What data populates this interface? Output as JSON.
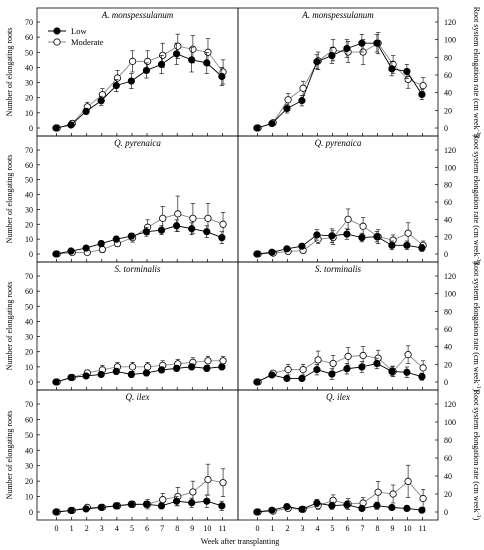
{
  "labels": {
    "xlabel": "Week after transplanting",
    "ylabel_left": "Number of elongating roots",
    "ylabel_right": "Root system elongation rate (cm week",
    "ylabel_right_exp": "-1",
    "ylabel_right_close": ")"
  },
  "legend": {
    "low": "Low",
    "moderate": "Moderate"
  },
  "colors": {
    "low": "#000000",
    "moderate": "#ffffff",
    "stroke": "#000000",
    "line_low": "#000000",
    "line_moderate": "#888888"
  },
  "chart_data": [
    {
      "type": "line",
      "title": "A. monspessulanum",
      "ylabel": "Number of elongating roots",
      "x": [
        0,
        1,
        2,
        3,
        4,
        5,
        6,
        7,
        8,
        9,
        10,
        11
      ],
      "ylim": [
        0,
        70
      ],
      "yticks": [
        0,
        10,
        20,
        30,
        40,
        50,
        60,
        70
      ],
      "series": [
        {
          "name": "Low",
          "values": [
            0,
            2,
            11,
            18,
            28,
            31,
            38,
            42,
            49,
            45,
            43,
            34
          ],
          "err": [
            1,
            1,
            2,
            3,
            4,
            5,
            5,
            6,
            7,
            8,
            7,
            6
          ]
        },
        {
          "name": "Moderate",
          "values": [
            0,
            3,
            14,
            22,
            33,
            44,
            44,
            48,
            54,
            52,
            50,
            37
          ],
          "err": [
            1,
            2,
            3,
            4,
            5,
            7,
            7,
            8,
            8,
            9,
            9,
            8
          ]
        }
      ]
    },
    {
      "type": "line",
      "title": "A. monspessulanum",
      "ylabel": "Root system elongation rate (cm week-1)",
      "x": [
        0,
        1,
        2,
        3,
        4,
        5,
        6,
        7,
        8,
        9,
        10,
        11
      ],
      "ylim": [
        0,
        120
      ],
      "yticks": [
        0,
        20,
        40,
        60,
        80,
        100,
        120
      ],
      "series": [
        {
          "name": "Low",
          "values": [
            0,
            5,
            22,
            31,
            75,
            82,
            90,
            96,
            96,
            67,
            64,
            38
          ],
          "err": [
            1,
            2,
            5,
            6,
            8,
            9,
            10,
            10,
            10,
            8,
            8,
            6
          ]
        },
        {
          "name": "Moderate",
          "values": [
            0,
            6,
            32,
            45,
            76,
            88,
            86,
            86,
            96,
            72,
            55,
            48
          ],
          "err": [
            1,
            2,
            7,
            8,
            10,
            12,
            12,
            14,
            12,
            10,
            10,
            9
          ]
        }
      ]
    },
    {
      "type": "line",
      "title": "Q. pyrenaica",
      "ylabel": "Number of elongating roots",
      "x": [
        0,
        1,
        2,
        3,
        4,
        5,
        6,
        7,
        8,
        9,
        10,
        11
      ],
      "ylim": [
        0,
        70
      ],
      "yticks": [
        0,
        10,
        20,
        30,
        40,
        50,
        60,
        70
      ],
      "series": [
        {
          "name": "Low",
          "values": [
            0,
            2,
            4,
            7,
            10,
            12,
            15,
            16,
            19,
            17,
            15,
            11
          ],
          "err": [
            0.5,
            1,
            1,
            2,
            2,
            2,
            3,
            3,
            4,
            4,
            4,
            4
          ]
        },
        {
          "name": "Moderate",
          "values": [
            0,
            1,
            1,
            3,
            7,
            11,
            18,
            24,
            27,
            24,
            24,
            20
          ],
          "err": [
            0.5,
            1,
            1,
            2,
            2,
            3,
            5,
            8,
            12,
            10,
            10,
            8
          ]
        }
      ]
    },
    {
      "type": "line",
      "title": "Q. pyrenaica",
      "ylabel": "Root system elongation rate (cm week-1)",
      "x": [
        0,
        1,
        2,
        3,
        4,
        5,
        6,
        7,
        8,
        9,
        10,
        11
      ],
      "ylim": [
        0,
        120
      ],
      "yticks": [
        0,
        20,
        40,
        60,
        80,
        100,
        120
      ],
      "series": [
        {
          "name": "Low",
          "values": [
            0,
            2,
            6,
            9,
            22,
            21,
            23,
            19,
            20,
            10,
            10,
            7
          ],
          "err": [
            1,
            1,
            2,
            3,
            6,
            8,
            6,
            5,
            6,
            5,
            5,
            4
          ]
        },
        {
          "name": "Moderate",
          "values": [
            0,
            1,
            3,
            4,
            17,
            19,
            40,
            32,
            20,
            16,
            24,
            10
          ],
          "err": [
            1,
            1,
            2,
            3,
            5,
            8,
            12,
            10,
            8,
            6,
            12,
            5
          ]
        }
      ]
    },
    {
      "type": "line",
      "title": "S. torminalis",
      "ylabel": "Number of elongating roots",
      "x": [
        0,
        1,
        2,
        3,
        4,
        5,
        6,
        7,
        8,
        9,
        10,
        11
      ],
      "ylim": [
        0,
        70
      ],
      "yticks": [
        0,
        10,
        20,
        30,
        40,
        50,
        60,
        70
      ],
      "series": [
        {
          "name": "Low",
          "values": [
            0,
            3,
            4,
            5,
            7,
            5,
            6,
            8,
            9,
            10,
            9,
            10
          ],
          "err": [
            0.5,
            1,
            1,
            1,
            2,
            2,
            2,
            2,
            2,
            2,
            2,
            2
          ]
        },
        {
          "name": "Moderate",
          "values": [
            0,
            3,
            6,
            8,
            10,
            10,
            10,
            11,
            12,
            13,
            14,
            14
          ],
          "err": [
            0.5,
            1,
            2,
            3,
            3,
            3,
            3,
            3,
            3,
            3,
            3,
            3
          ]
        }
      ]
    },
    {
      "type": "line",
      "title": "S. torminalis",
      "ylabel": "Root system elongation rate (cm week-1)",
      "x": [
        0,
        1,
        2,
        3,
        4,
        5,
        6,
        7,
        8,
        9,
        10,
        11
      ],
      "ylim": [
        0,
        120
      ],
      "yticks": [
        0,
        20,
        40,
        60,
        80,
        100,
        120
      ],
      "series": [
        {
          "name": "Low",
          "values": [
            0,
            8,
            4,
            4,
            14,
            9,
            15,
            17,
            21,
            12,
            11,
            6
          ],
          "err": [
            1,
            2,
            3,
            3,
            6,
            6,
            6,
            6,
            6,
            5,
            6,
            4
          ]
        },
        {
          "name": "Moderate",
          "values": [
            0,
            10,
            14,
            14,
            25,
            21,
            29,
            30,
            27,
            12,
            31,
            16
          ],
          "err": [
            1,
            3,
            6,
            6,
            10,
            9,
            10,
            10,
            9,
            6,
            10,
            8
          ]
        }
      ]
    },
    {
      "type": "line",
      "title": "Q. ilex",
      "ylabel": "Number of elongating roots",
      "x": [
        0,
        1,
        2,
        3,
        4,
        5,
        6,
        7,
        8,
        9,
        10,
        11
      ],
      "ylim": [
        0,
        70
      ],
      "yticks": [
        0,
        10,
        20,
        30,
        40,
        50,
        60,
        70
      ],
      "series": [
        {
          "name": "Low",
          "values": [
            0,
            1,
            2,
            3,
            4,
            5,
            5,
            4,
            7,
            6,
            7,
            4
          ],
          "err": [
            0.5,
            1,
            1,
            1,
            2,
            2,
            2,
            2,
            3,
            3,
            4,
            3
          ]
        },
        {
          "name": "Moderate",
          "values": [
            0,
            1,
            3,
            3,
            4,
            5,
            5,
            8,
            10,
            13,
            21,
            19
          ],
          "err": [
            0.5,
            1,
            1,
            1,
            2,
            2,
            3,
            4,
            6,
            7,
            10,
            9
          ]
        }
      ]
    },
    {
      "type": "line",
      "title": "Q. ilex",
      "ylabel": "Root system elongation rate (cm week-1)",
      "x": [
        0,
        1,
        2,
        3,
        4,
        5,
        6,
        7,
        8,
        9,
        10,
        11
      ],
      "ylim": [
        0,
        120
      ],
      "yticks": [
        0,
        20,
        40,
        60,
        80,
        100,
        120
      ],
      "series": [
        {
          "name": "Low",
          "values": [
            0,
            2,
            6,
            3,
            10,
            7,
            8,
            4,
            7,
            5,
            4,
            2
          ],
          "err": [
            1,
            1,
            3,
            2,
            4,
            4,
            4,
            3,
            4,
            3,
            3,
            2
          ]
        },
        {
          "name": "Moderate",
          "values": [
            0,
            1,
            4,
            3,
            7,
            13,
            9,
            10,
            22,
            20,
            34,
            15
          ],
          "err": [
            1,
            1,
            2,
            2,
            4,
            6,
            6,
            6,
            12,
            10,
            18,
            10
          ]
        }
      ]
    }
  ]
}
